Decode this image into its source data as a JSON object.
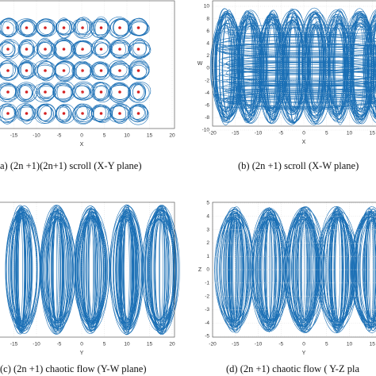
{
  "panels": [
    {
      "caption": "a) (2n +1)(2n+1) scroll (X-Y plane)",
      "xlabel": "X",
      "xticks": [
        -15,
        -10,
        -5,
        0,
        5,
        10,
        15,
        20
      ]
    },
    {
      "caption": "(b) (2n +1) scroll (X-W plane)",
      "xlabel": "X",
      "ylabel": "W",
      "xticks": [
        -20,
        -15,
        -10,
        -5,
        0,
        5,
        10,
        15
      ],
      "yticks": [
        10,
        8,
        6,
        4,
        2,
        0,
        -2,
        -4,
        -6,
        -8,
        -10
      ]
    },
    {
      "caption": "(c) (2n +1) chaotic flow (Y-W plane)",
      "xlabel": "Y",
      "xticks": [
        -15,
        -10,
        -5,
        0,
        5,
        10,
        15,
        20
      ]
    },
    {
      "caption": "(d) (2n +1) chaotic flow ( Y-Z pla",
      "xlabel": "Y",
      "ylabel": "Z",
      "xticks": [
        -20,
        -15,
        -10,
        -5,
        0,
        5,
        10,
        15
      ],
      "yticks": [
        5,
        4,
        3,
        2,
        1,
        0,
        -1,
        -2,
        -3,
        -4,
        -5
      ]
    }
  ]
}
